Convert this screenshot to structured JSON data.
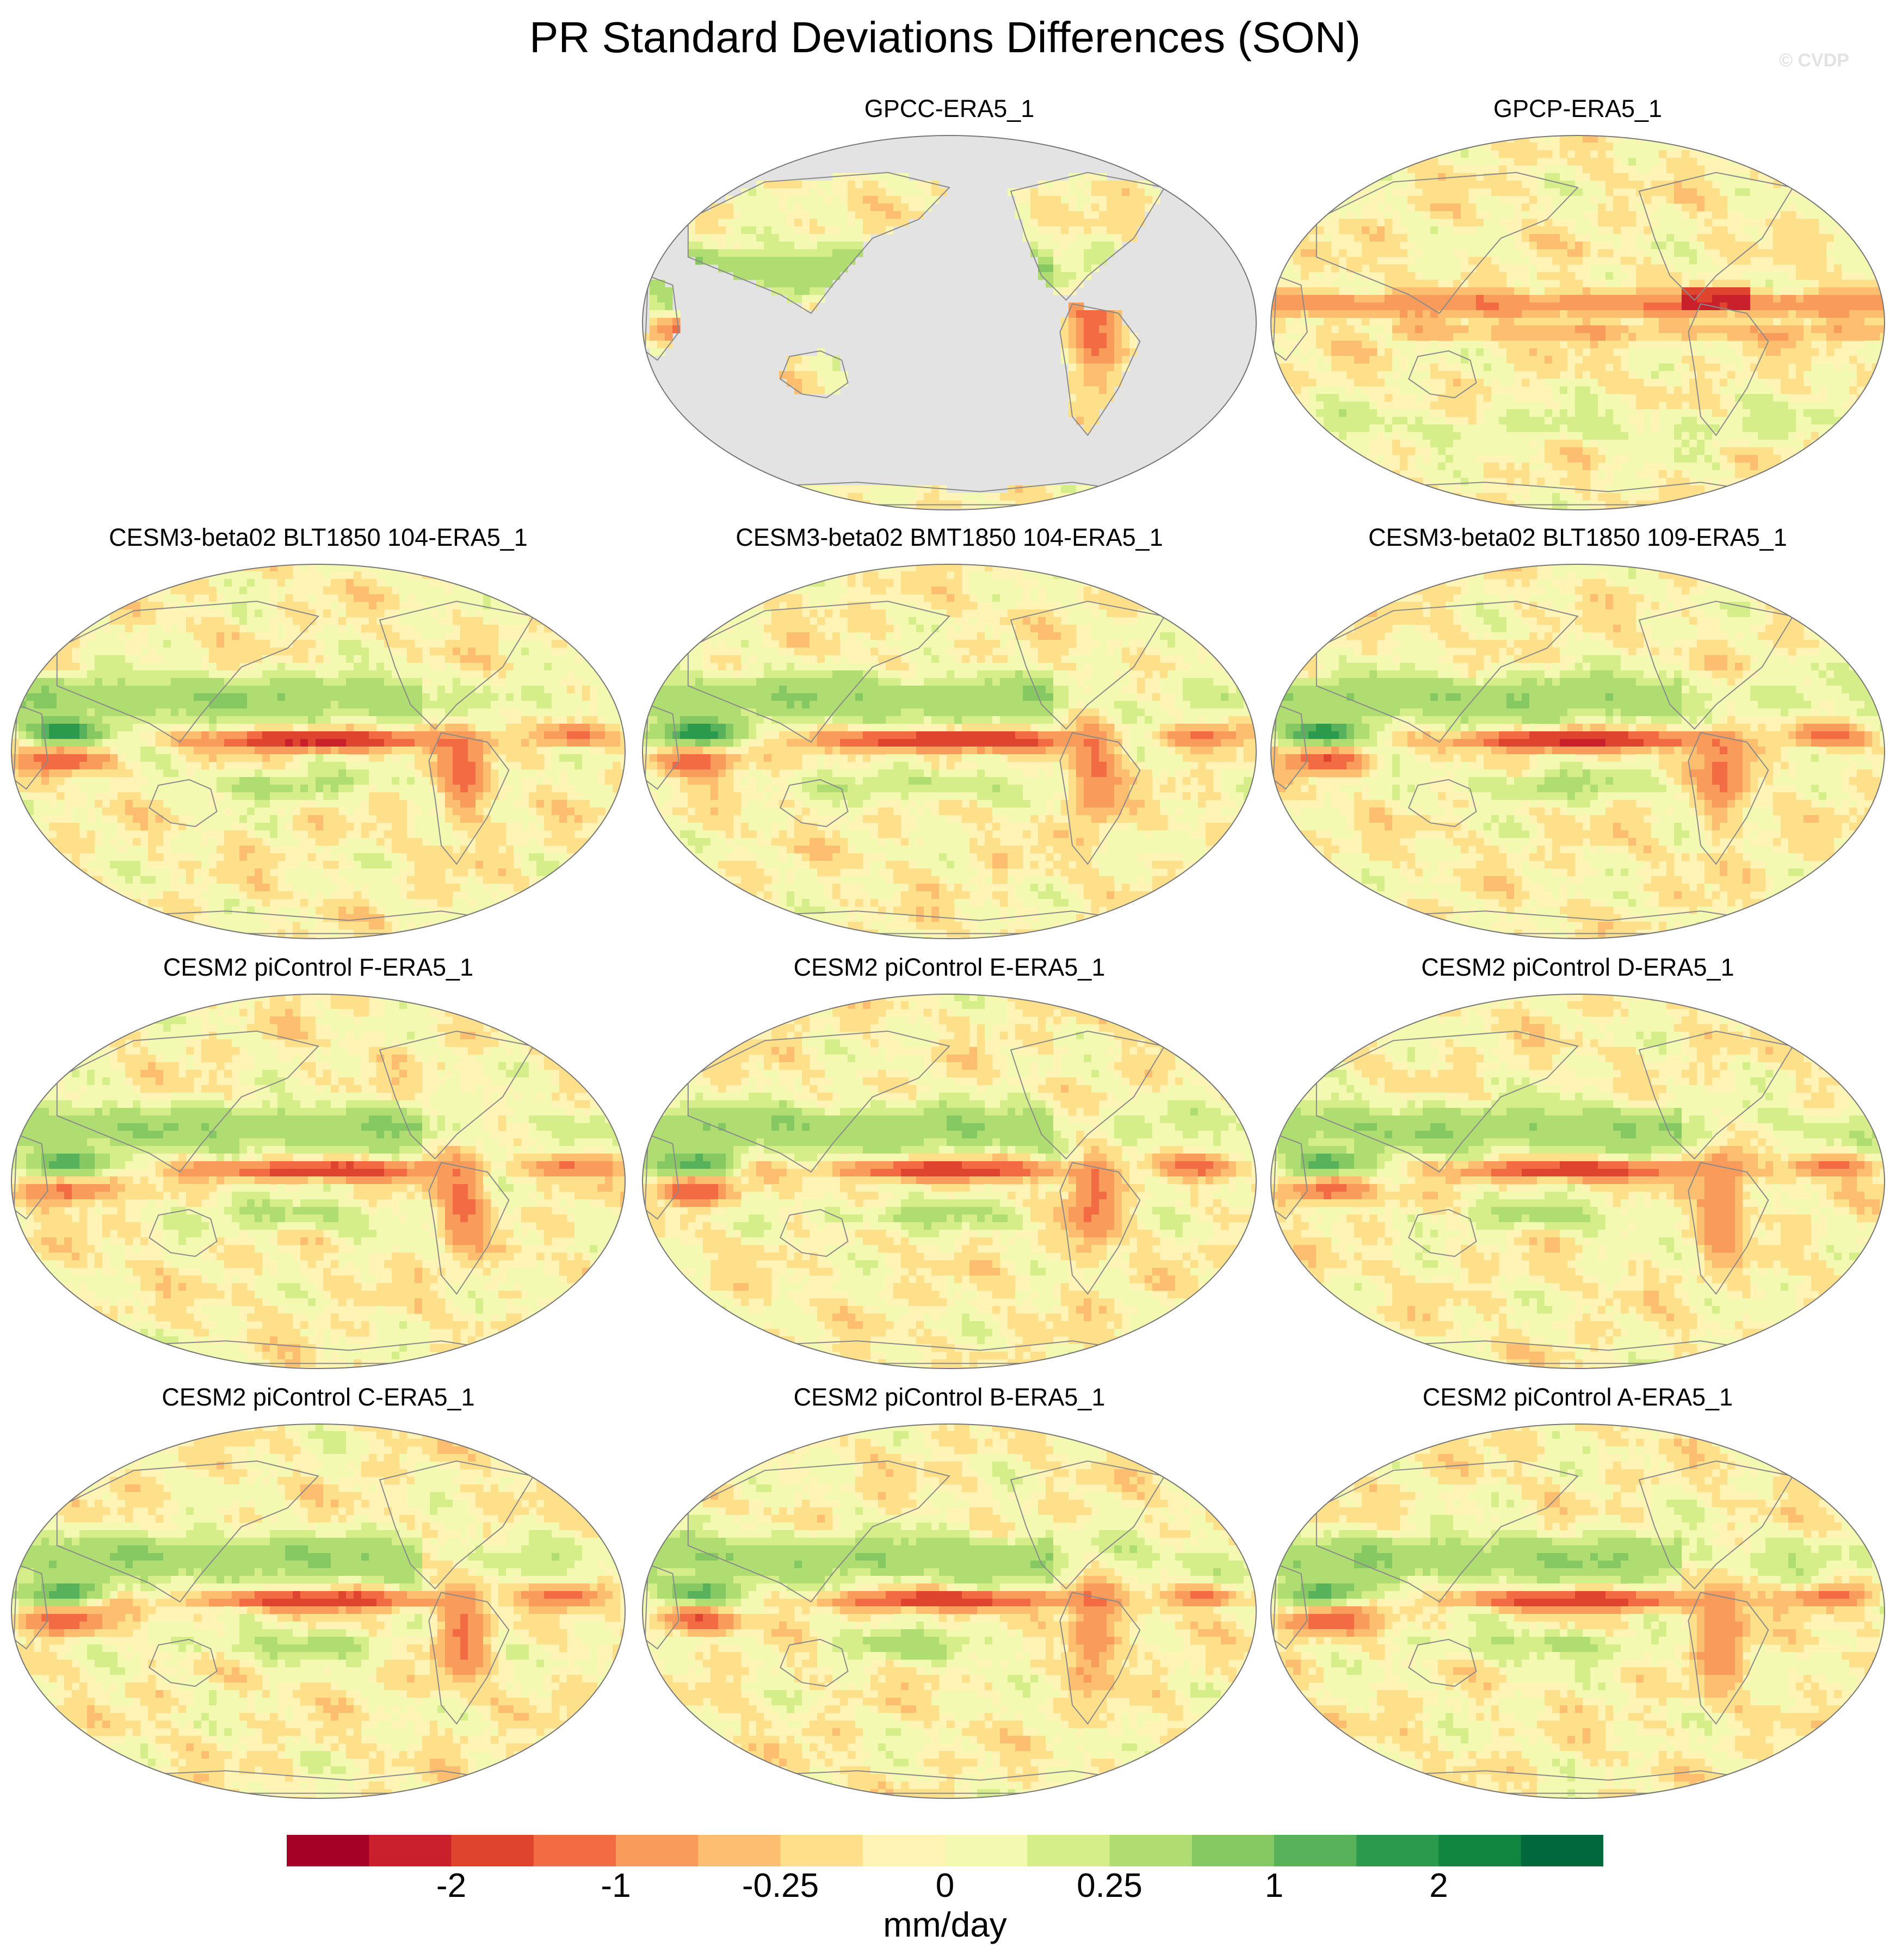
{
  "title": "PR Standard Deviations Differences (SON)",
  "copyright": "© CVDP",
  "panels": [
    {
      "title": "GPCC-ERA5_1",
      "style": "land_only"
    },
    {
      "title": "GPCP-ERA5_1",
      "style": "obs_full"
    },
    {
      "title": "CESM3-beta02 BLT1850 104-ERA5_1",
      "style": "model_strong"
    },
    {
      "title": "CESM3-beta02 BMT1850 104-ERA5_1",
      "style": "model_strong"
    },
    {
      "title": "CESM3-beta02 BLT1850 109-ERA5_1",
      "style": "model_strong"
    },
    {
      "title": "CESM2 piControl F-ERA5_1",
      "style": "model"
    },
    {
      "title": "CESM2 piControl E-ERA5_1",
      "style": "model"
    },
    {
      "title": "CESM2 piControl D-ERA5_1",
      "style": "model"
    },
    {
      "title": "CESM2 piControl C-ERA5_1",
      "style": "model"
    },
    {
      "title": "CESM2 piControl B-ERA5_1",
      "style": "model"
    },
    {
      "title": "CESM2 piControl A-ERA5_1",
      "style": "model"
    }
  ],
  "colorbar": {
    "units": "mm/day",
    "labels": [
      "-2",
      "-1",
      "-0.25",
      "0",
      "0.25",
      "1",
      "2"
    ],
    "colors": [
      "#a50026",
      "#c9202c",
      "#df442f",
      "#f26b43",
      "#f99b5a",
      "#fdbe70",
      "#fee08b",
      "#fff4b5",
      "#f3f9b1",
      "#d6ee8a",
      "#b0dd71",
      "#86c963",
      "#58b15b",
      "#2c9a4c",
      "#108641",
      "#00683a"
    ]
  },
  "colors": {
    "missing": "#e3e3e3",
    "coastline": "#8a8a8a",
    "background": "#fff4b5"
  }
}
